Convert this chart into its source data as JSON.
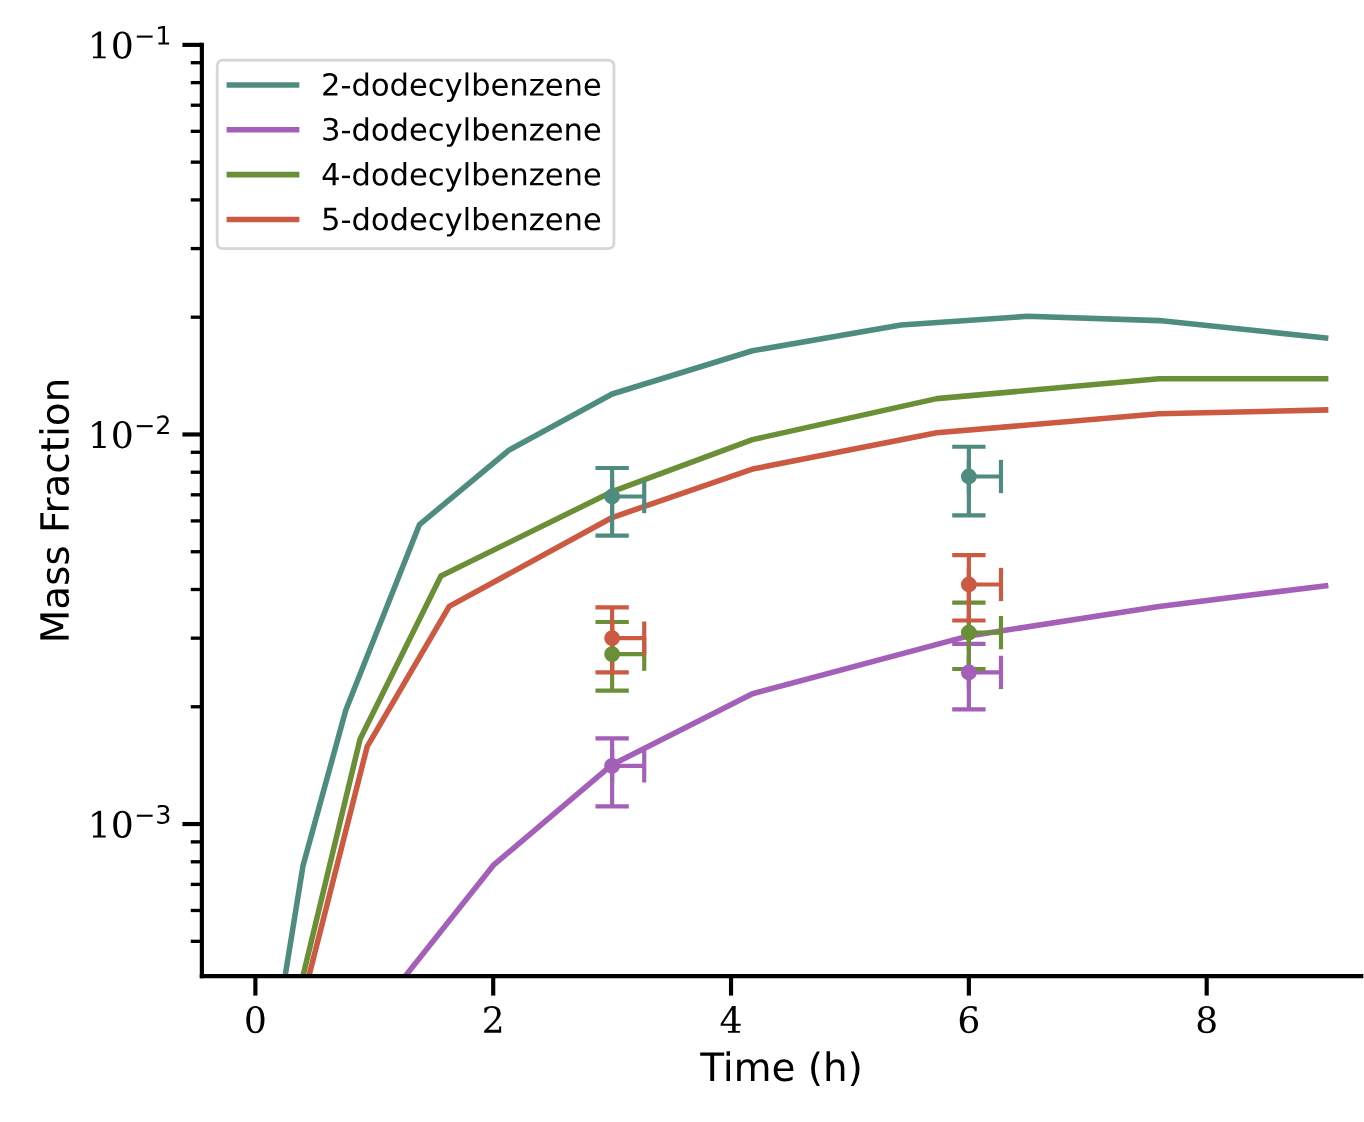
{
  "chart_data": {
    "type": "line",
    "xlabel": "Time (h)",
    "ylabel": "Mass Fraction",
    "log": "y",
    "xlim": [
      -0.45,
      9.3
    ],
    "xticks": [
      0,
      2,
      4,
      6,
      8
    ],
    "ylim": [
      0.000407,
      0.1
    ],
    "yticks": [
      {
        "value": 0.001,
        "label": "10$^{−3}$"
      },
      {
        "value": 0.01,
        "label": "10$^{−2}$"
      },
      {
        "value": 0.1,
        "label": "10$^{−1}$"
      }
    ],
    "legend": "top left",
    "grid": false,
    "series": [
      {
        "name": "2-dodecylbenzene",
        "color": "#4f8c80",
        "x": [
          0.25,
          0.4,
          0.76,
          1.38,
          2.13,
          3.0,
          4.18,
          5.43,
          6.49,
          7.6,
          9.0
        ],
        "values": [
          0.000407,
          0.00078,
          0.00196,
          0.00587,
          0.0091,
          0.0127,
          0.0164,
          0.0191,
          0.0201,
          0.0196,
          0.0177
        ]
      },
      {
        "name": "3-dodecylbenzene",
        "color": "#a45fb9",
        "x": [
          1.26,
          2.0,
          3.0,
          4.18,
          6.0,
          7.6,
          9.0
        ],
        "values": [
          0.000407,
          0.000783,
          0.00142,
          0.00216,
          0.00304,
          0.00362,
          0.00409
        ]
      },
      {
        "name": "4-dodecylbenzene",
        "color": "#6a8f36",
        "x": [
          0.4,
          0.88,
          1.56,
          3.0,
          4.18,
          5.73,
          7.6,
          9.0
        ],
        "values": [
          0.000407,
          0.00165,
          0.00433,
          0.00713,
          0.0097,
          0.01236,
          0.0139,
          0.0139
        ]
      },
      {
        "name": "5-dodecylbenzene",
        "color": "#cc5a43",
        "x": [
          0.45,
          0.94,
          1.63,
          3.0,
          4.18,
          5.73,
          7.6,
          9.0
        ],
        "values": [
          0.000407,
          0.00158,
          0.00362,
          0.00612,
          0.00815,
          0.0101,
          0.0113,
          0.01156
        ]
      },
      {
        "type": "scatter",
        "marker": "circle",
        "color": "#4f8c80",
        "x": [
          3,
          6
        ],
        "values": [
          0.00693,
          0.0078
        ],
        "errors": [
          [
            0.0055,
            0.0082
          ],
          [
            0.0062,
            0.0093
          ]
        ],
        "xerrors": [
          [
            3,
            3.27
          ],
          [
            6,
            6.27
          ]
        ]
      },
      {
        "type": "scatter",
        "marker": "circle",
        "color": "#a45fb9",
        "x": [
          3,
          6
        ],
        "values": [
          0.00141,
          0.00245
        ],
        "errors": [
          [
            0.00111,
            0.00166
          ],
          [
            0.00197,
            0.0029
          ]
        ],
        "xerrors": [
          [
            3,
            3.27
          ],
          [
            6,
            6.27
          ]
        ]
      },
      {
        "type": "scatter",
        "marker": "circle",
        "color": "#6a8f36",
        "x": [
          3,
          6
        ],
        "values": [
          0.00273,
          0.0031
        ],
        "errors": [
          [
            0.0022,
            0.0033
          ],
          [
            0.0025,
            0.0037
          ]
        ],
        "xerrors": [
          [
            3,
            3.27
          ],
          [
            6,
            6.27
          ]
        ]
      },
      {
        "type": "scatter",
        "marker": "circle",
        "color": "#cc5a43",
        "x": [
          3,
          6
        ],
        "values": [
          0.003,
          0.00412
        ],
        "errors": [
          [
            0.00245,
            0.0036
          ],
          [
            0.00333,
            0.0049
          ]
        ],
        "xerrors": [
          [
            3,
            3.27
          ],
          [
            6,
            6.27
          ]
        ]
      }
    ]
  }
}
